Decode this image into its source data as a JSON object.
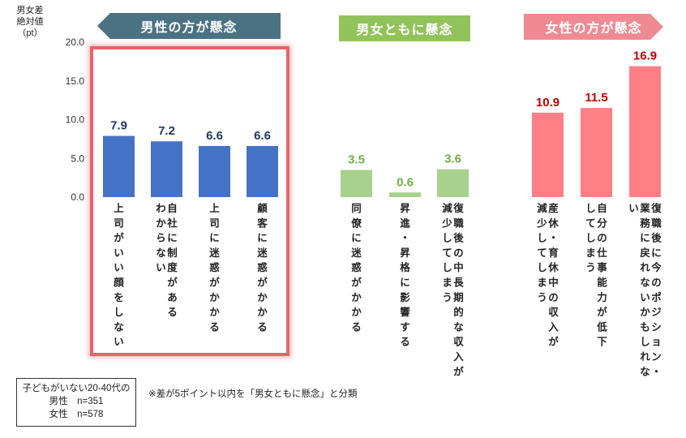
{
  "y_axis_title": "男女差\n絶対値\n（pt）",
  "banners": {
    "male": "男性の方が懸念",
    "both": "男女ともに懸念",
    "female": "女性の方が懸念"
  },
  "colors": {
    "male": "#4472c4",
    "both": "#a9d18e",
    "female": "#ff7f86",
    "male_banner": "#4a7283",
    "both_banner": "#92c35a",
    "female_banner": "#f08a92",
    "highlight": "#e8636a",
    "male_label": "#1f3864",
    "both_label": "#70ad47",
    "female_label": "#c00000"
  },
  "sample": {
    "line1": "子どもがいない20-40代の",
    "line2": "男性　n=351",
    "line3": "女性　n=578"
  },
  "note": "※差が5ポイント以内を「男女ともに懸念」と分類",
  "chart_data": {
    "type": "bar",
    "ylim": [
      0,
      20
    ],
    "yticks": [
      "0.0",
      "5.0",
      "10.0",
      "15.0",
      "20.0"
    ],
    "bars": [
      {
        "group": "male",
        "value": 7.9,
        "value_label": "7.9",
        "label": "上司がいい顔をしない"
      },
      {
        "group": "male",
        "value": 7.2,
        "value_label": "7.2",
        "label": "自社に制度がある|わからない"
      },
      {
        "group": "male",
        "value": 6.6,
        "value_label": "6.6",
        "label": "上司に迷惑がかかる"
      },
      {
        "group": "male",
        "value": 6.6,
        "value_label": "6.6",
        "label": "顧客に迷惑がかかる"
      },
      {
        "group": "both",
        "value": 3.5,
        "value_label": "3.5",
        "label": "同僚に迷惑がかかる"
      },
      {
        "group": "both",
        "value": 0.6,
        "value_label": "0.6",
        "label": "昇進・昇格に影響する"
      },
      {
        "group": "both",
        "value": 3.6,
        "value_label": "3.6",
        "label": "復職後の中長期的な収入が|減少してしまう"
      },
      {
        "group": "female",
        "value": 10.9,
        "value_label": "10.9",
        "label": "産休・育休中の収入が|減少してしまう"
      },
      {
        "group": "female",
        "value": 11.5,
        "value_label": "11.5",
        "label": "自分の仕事能力が低下|してしまう"
      },
      {
        "group": "female",
        "value": 16.9,
        "value_label": "16.9",
        "label": "復職後に今のポジション・|業務に戻れないかもしれな|い"
      }
    ]
  }
}
